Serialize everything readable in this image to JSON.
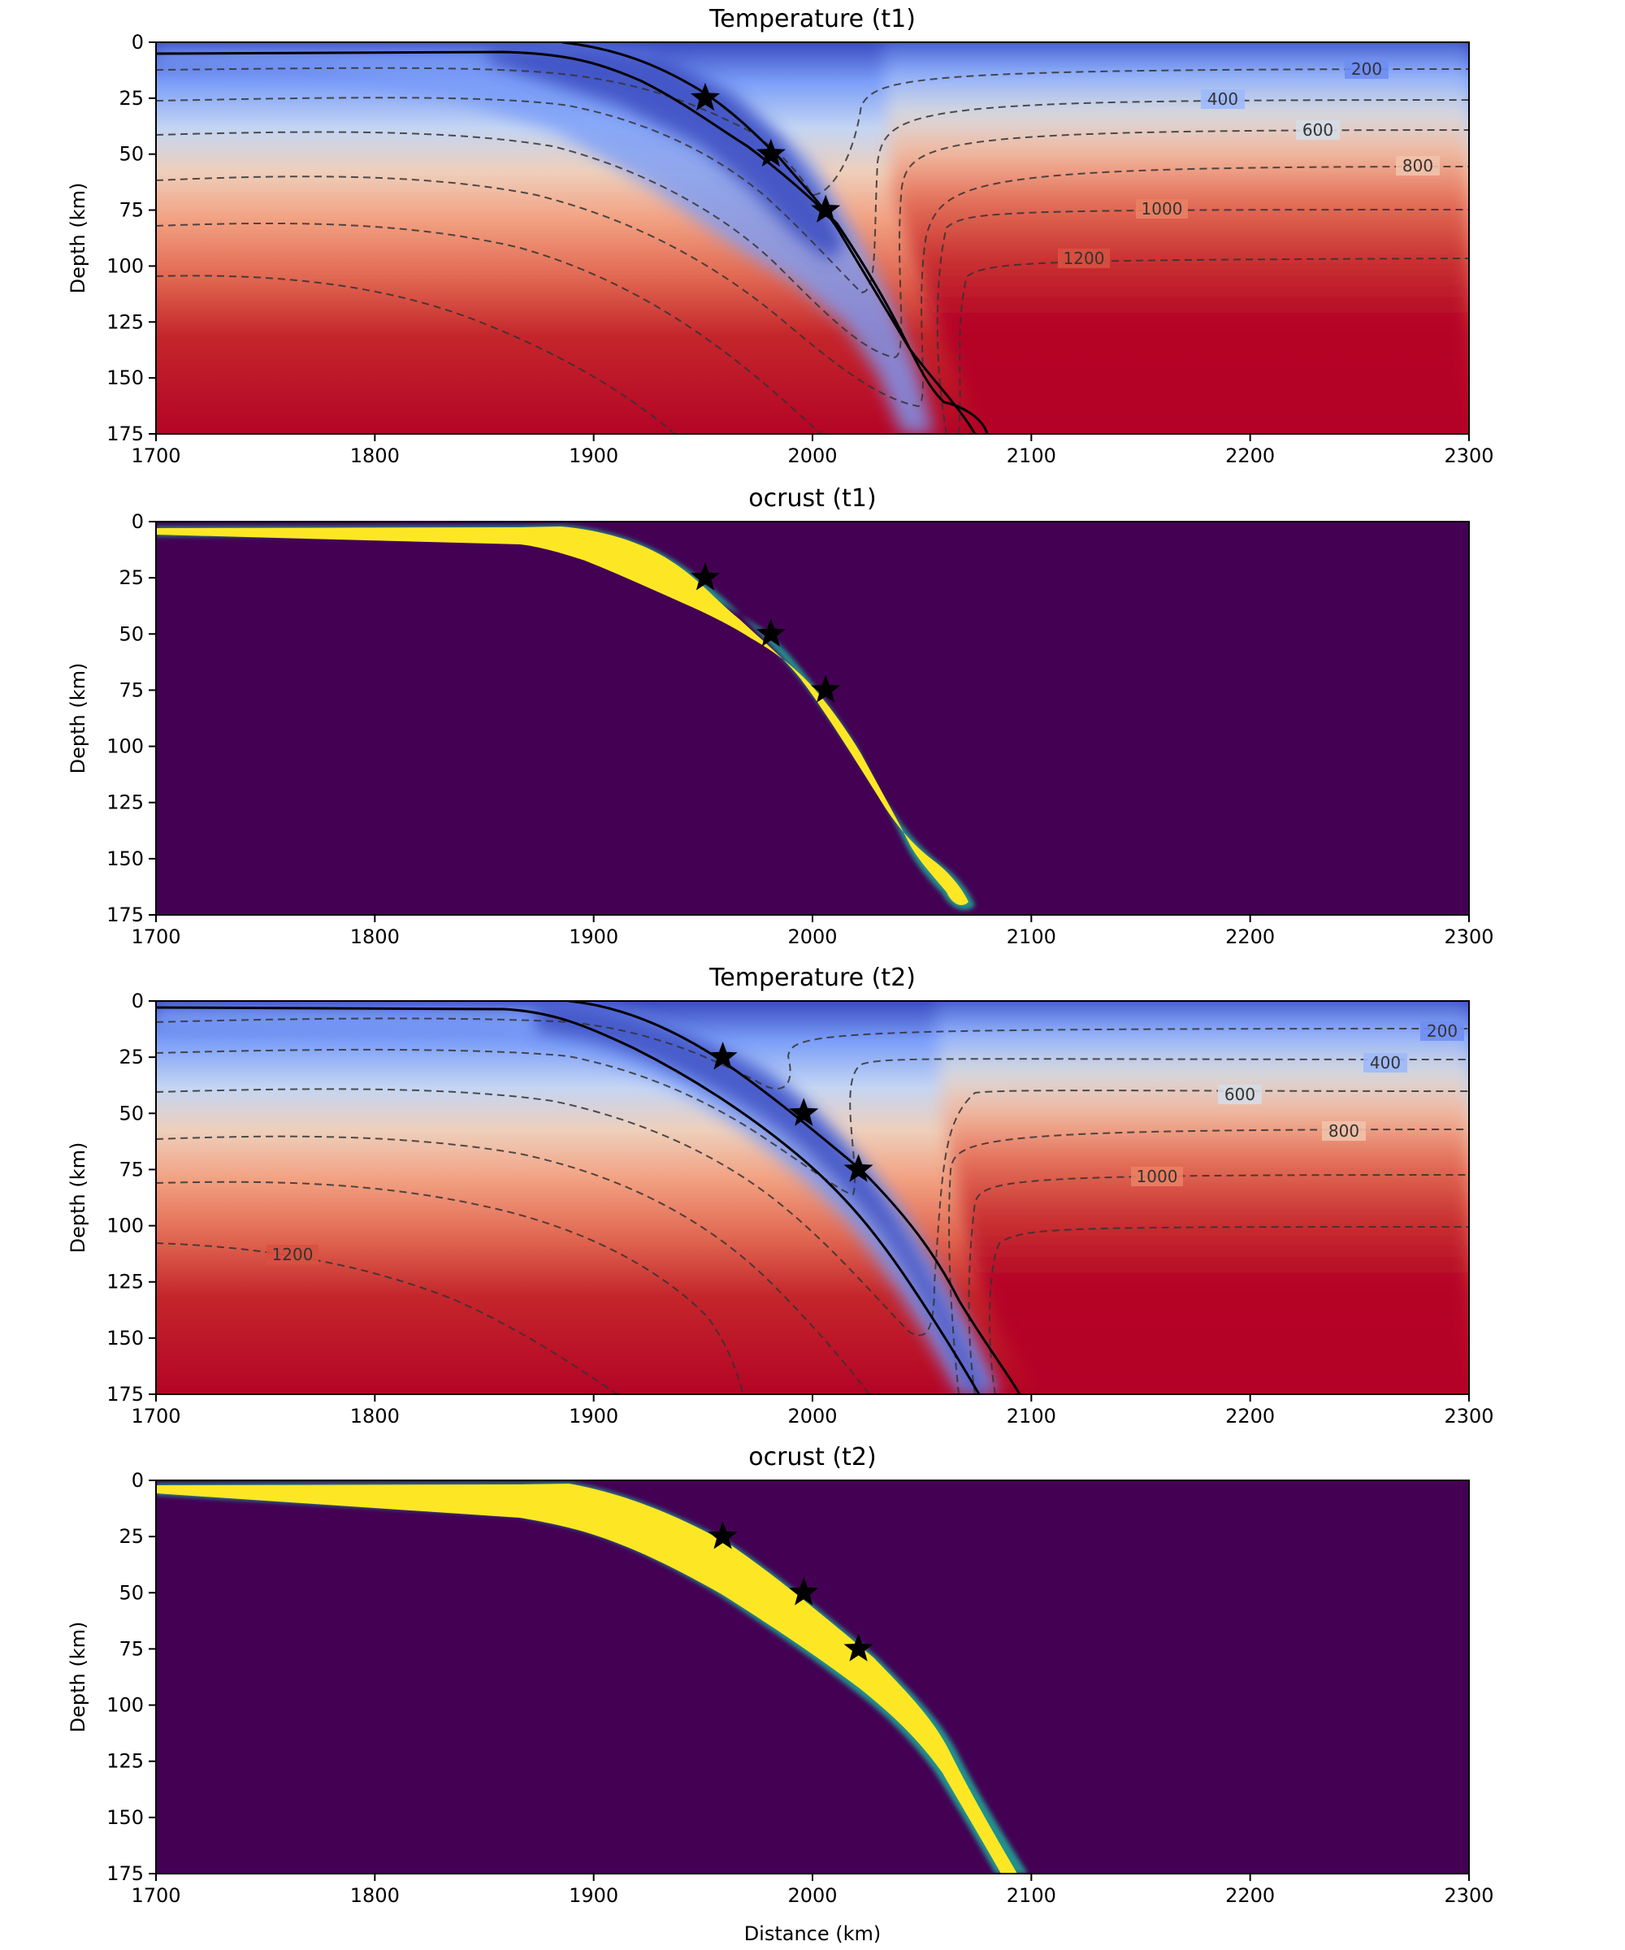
{
  "chart_data": [
    {
      "type": "heatmap",
      "title": "Temperature (t1)",
      "xlabel": "",
      "ylabel": "Depth (km)",
      "xlim": [
        1700,
        2300
      ],
      "ylim": [
        175,
        0
      ],
      "xticks": [
        "1700",
        "1800",
        "1900",
        "2000",
        "2100",
        "2200",
        "2300"
      ],
      "yticks": [
        "0",
        "25",
        "50",
        "75",
        "100",
        "125",
        "150",
        "175"
      ],
      "colormap": "coolwarm",
      "contour_levels": [
        "200",
        "400",
        "600",
        "800",
        "1000",
        "1200"
      ],
      "stars": [
        {
          "x": 1951,
          "y": 25
        },
        {
          "x": 1981,
          "y": 50
        },
        {
          "x": 2006,
          "y": 75
        }
      ],
      "slab_top": [
        [
          1700,
          5
        ],
        [
          1860,
          5
        ],
        [
          1900,
          15
        ],
        [
          1950,
          30
        ],
        [
          1985,
          52
        ],
        [
          2006,
          75
        ],
        [
          2030,
          110
        ],
        [
          2050,
          140
        ],
        [
          2065,
          165
        ],
        [
          2080,
          178
        ]
      ],
      "slab_bottom": [
        [
          1700,
          5
        ],
        [
          1860,
          5
        ],
        [
          1890,
          0
        ],
        [
          1925,
          10
        ],
        [
          1955,
          27
        ],
        [
          1985,
          50
        ],
        [
          2006,
          70
        ],
        [
          2030,
          105
        ],
        [
          2055,
          140
        ],
        [
          2082,
          175
        ]
      ]
    },
    {
      "type": "heatmap",
      "title": "ocrust (t1)",
      "xlabel": "",
      "ylabel": "Depth (km)",
      "xlim": [
        1700,
        2300
      ],
      "ylim": [
        175,
        0
      ],
      "xticks": [
        "1700",
        "1800",
        "1900",
        "2000",
        "2100",
        "2200",
        "2300"
      ],
      "yticks": [
        "0",
        "25",
        "50",
        "75",
        "100",
        "125",
        "150",
        "175"
      ],
      "colormap": "viridis",
      "stars": [
        {
          "x": 1951,
          "y": 25
        },
        {
          "x": 1981,
          "y": 50
        },
        {
          "x": 2006,
          "y": 75
        }
      ]
    },
    {
      "type": "heatmap",
      "title": "Temperature (t2)",
      "xlabel": "",
      "ylabel": "Depth (km)",
      "xlim": [
        1700,
        2300
      ],
      "ylim": [
        175,
        0
      ],
      "xticks": [
        "1700",
        "1800",
        "1900",
        "2000",
        "2100",
        "2200",
        "2300"
      ],
      "yticks": [
        "0",
        "25",
        "50",
        "75",
        "100",
        "125",
        "150",
        "175"
      ],
      "colormap": "coolwarm",
      "contour_levels": [
        "200",
        "400",
        "600",
        "800",
        "1000",
        "1200"
      ],
      "stars": [
        {
          "x": 1959,
          "y": 25
        },
        {
          "x": 1996,
          "y": 50
        },
        {
          "x": 2021,
          "y": 75
        }
      ]
    },
    {
      "type": "heatmap",
      "title": "ocrust (t2)",
      "xlabel": "Distance (km)",
      "ylabel": "Depth (km)",
      "xlim": [
        1700,
        2300
      ],
      "ylim": [
        175,
        0
      ],
      "xticks": [
        "1700",
        "1800",
        "1900",
        "2000",
        "2100",
        "2200",
        "2300"
      ],
      "yticks": [
        "0",
        "25",
        "50",
        "75",
        "100",
        "125",
        "150",
        "175"
      ],
      "colormap": "viridis",
      "stars": [
        {
          "x": 1959,
          "y": 25
        },
        {
          "x": 1996,
          "y": 50
        },
        {
          "x": 2021,
          "y": 75
        }
      ]
    }
  ]
}
